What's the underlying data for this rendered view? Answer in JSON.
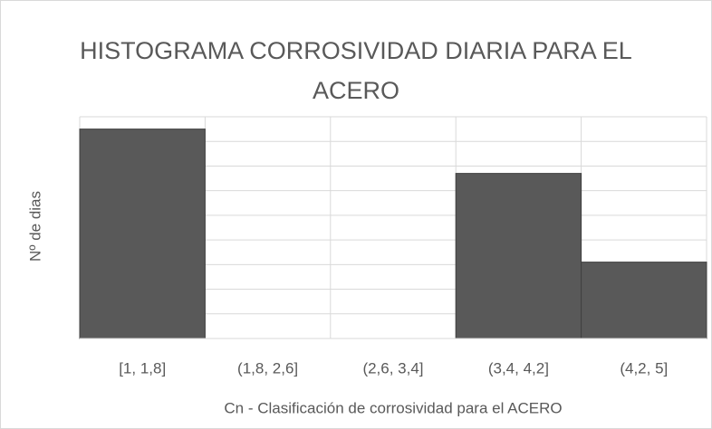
{
  "chart_data": {
    "type": "bar",
    "title": "HISTOGRAMA CORROSIVIDAD DIARIA PARA EL ACERO",
    "x_label": "Cn - Clasificación de corrosividad para el ACERO",
    "y_label": "Nº de dias",
    "categories": [
      "[1, 1,8]",
      "(1,8, 2,6]",
      "(2,6, 3,4]",
      "(3,4, 4,2]",
      "(4,2, 5]"
    ],
    "values": [
      17,
      0,
      0,
      13.4,
      6.2
    ],
    "color": "#595959",
    "ylim": [
      0,
      18
    ],
    "yticks": [
      0,
      2,
      4,
      6,
      8,
      10,
      12,
      14,
      16,
      18
    ],
    "grid": true
  }
}
